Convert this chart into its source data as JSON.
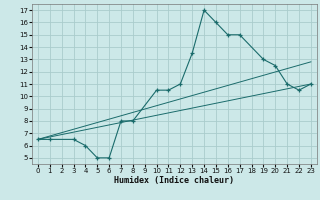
{
  "xlabel": "Humidex (Indice chaleur)",
  "bg_color": "#cce8e8",
  "grid_color": "#aacccc",
  "line_color": "#1a6b6b",
  "xlim": [
    -0.5,
    23.5
  ],
  "ylim": [
    4.5,
    17.5
  ],
  "xticks": [
    0,
    1,
    2,
    3,
    4,
    5,
    6,
    7,
    8,
    9,
    10,
    11,
    12,
    13,
    14,
    15,
    16,
    17,
    18,
    19,
    20,
    21,
    22,
    23
  ],
  "yticks": [
    5,
    6,
    7,
    8,
    9,
    10,
    11,
    12,
    13,
    14,
    15,
    16,
    17
  ],
  "main_x": [
    0,
    1,
    3,
    4,
    5,
    6,
    7,
    8,
    10,
    11,
    12,
    13,
    14,
    15,
    16,
    17,
    19,
    20,
    21,
    22,
    23
  ],
  "main_y": [
    6.5,
    6.5,
    6.5,
    6.0,
    5.0,
    5.0,
    8.0,
    8.0,
    10.5,
    10.5,
    11.0,
    13.5,
    17.0,
    16.0,
    15.0,
    15.0,
    13.0,
    12.5,
    11.0,
    10.5,
    11.0
  ],
  "line2_x": [
    0,
    23
  ],
  "line2_y": [
    6.5,
    11.0
  ],
  "line3_x": [
    0,
    23
  ],
  "line3_y": [
    6.5,
    12.8
  ]
}
